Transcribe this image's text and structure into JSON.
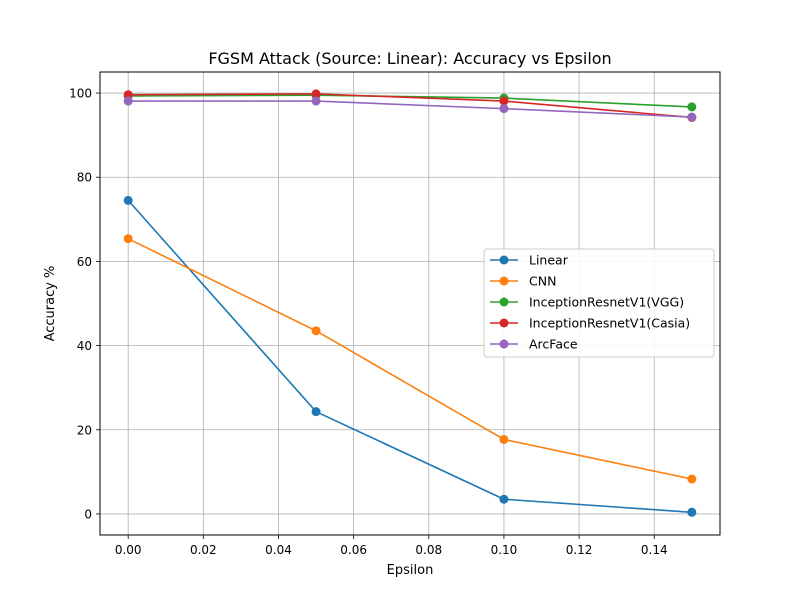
{
  "chart_data": {
    "type": "line",
    "title": "FGSM Attack (Source: Linear): Accuracy vs Epsilon",
    "xlabel": "Epsilon",
    "ylabel": "Accuracy %",
    "xlim": [
      -0.0075,
      0.1575
    ],
    "ylim": [
      -5,
      105
    ],
    "xticks": [
      0.0,
      0.02,
      0.04,
      0.06,
      0.08,
      0.1,
      0.12,
      0.14
    ],
    "xtick_labels": [
      "0.00",
      "0.02",
      "0.04",
      "0.06",
      "0.08",
      "0.10",
      "0.12",
      "0.14"
    ],
    "yticks": [
      0,
      20,
      40,
      60,
      80,
      100
    ],
    "ytick_labels": [
      "0",
      "20",
      "40",
      "60",
      "80",
      "100"
    ],
    "grid": true,
    "legend_position": "center-right",
    "x": [
      0.0,
      0.05,
      0.1,
      0.15
    ],
    "series": [
      {
        "name": "Linear",
        "color": "#1f77b4",
        "values": [
          74.5,
          24.3,
          3.5,
          0.4
        ]
      },
      {
        "name": "CNN",
        "color": "#ff7f0e",
        "values": [
          65.4,
          43.5,
          17.7,
          8.3
        ]
      },
      {
        "name": "InceptionResnetV1(VGG)",
        "color": "#2ca02c",
        "values": [
          99.3,
          99.5,
          98.8,
          96.7
        ]
      },
      {
        "name": "InceptionResnetV1(Casia)",
        "color": "#d62728",
        "values": [
          99.6,
          99.8,
          98.1,
          94.2
        ]
      },
      {
        "name": "ArcFace",
        "color": "#9467bd",
        "values": [
          98.1,
          98.1,
          96.3,
          94.3
        ]
      }
    ]
  }
}
